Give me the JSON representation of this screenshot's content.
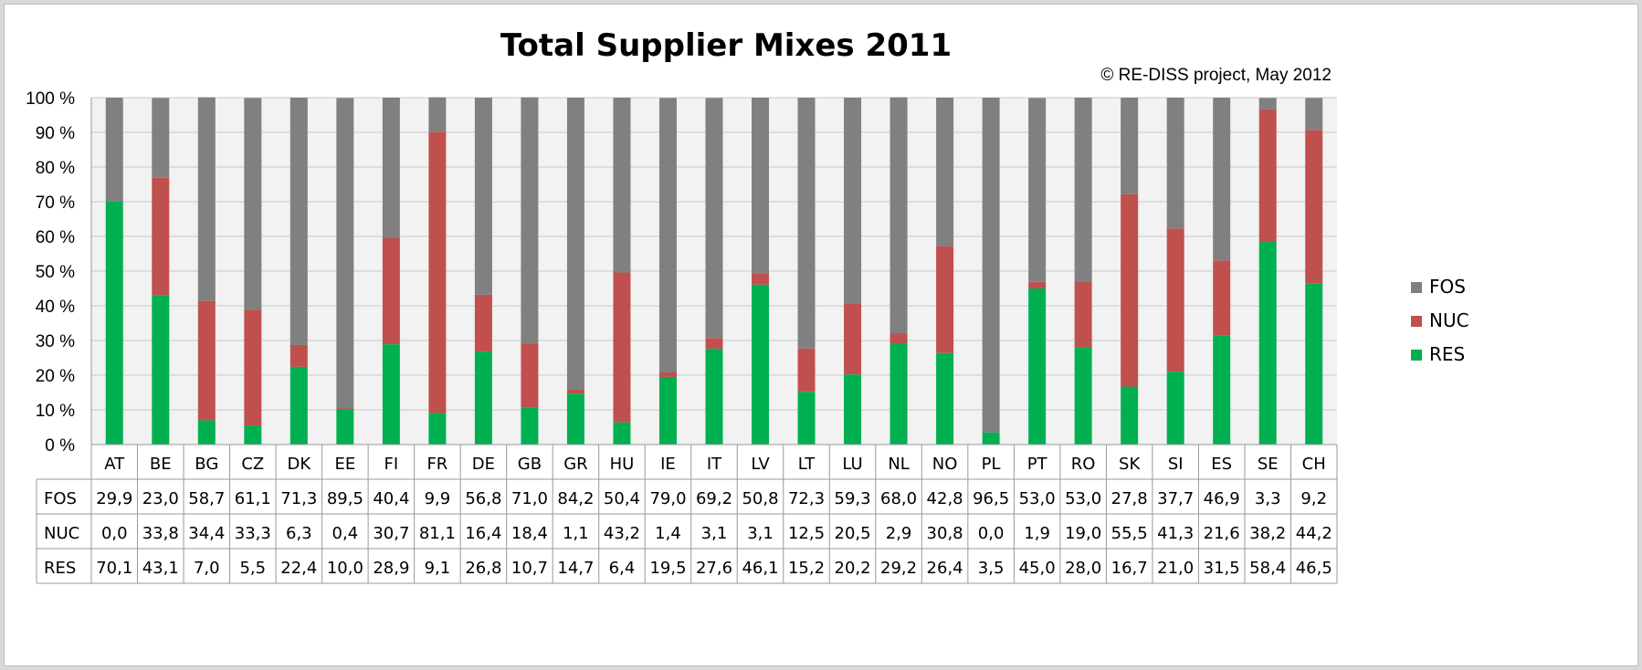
{
  "chart_data": {
    "type": "bar",
    "stacked": true,
    "percent_stacked": true,
    "title": "Total Supplier Mixes 2011",
    "annotation": "© RE-DISS project, May 2012",
    "categories": [
      "AT",
      "BE",
      "BG",
      "CZ",
      "DK",
      "EE",
      "FI",
      "FR",
      "DE",
      "GB",
      "GR",
      "HU",
      "IE",
      "IT",
      "LV",
      "LT",
      "LU",
      "NL",
      "NO",
      "PL",
      "PT",
      "RO",
      "SK",
      "SI",
      "ES",
      "SE",
      "CH"
    ],
    "series": [
      {
        "name": "RES",
        "color": "#00b050",
        "values": [
          70.1,
          43.1,
          7.0,
          5.5,
          22.4,
          10.0,
          28.9,
          9.1,
          26.8,
          10.7,
          14.7,
          6.4,
          19.5,
          27.6,
          46.1,
          15.2,
          20.2,
          29.2,
          26.4,
          3.5,
          45.0,
          28.0,
          16.7,
          21.0,
          31.5,
          58.4,
          46.5
        ],
        "labels": [
          "70,1",
          "43,1",
          "7,0",
          "5,5",
          "22,4",
          "10,0",
          "28,9",
          "9,1",
          "26,8",
          "10,7",
          "14,7",
          "6,4",
          "19,5",
          "27,6",
          "46,1",
          "15,2",
          "20,2",
          "29,2",
          "26,4",
          "3,5",
          "45,0",
          "28,0",
          "16,7",
          "21,0",
          "31,5",
          "58,4",
          "46,5"
        ]
      },
      {
        "name": "NUC",
        "color": "#c0504d",
        "values": [
          0.0,
          33.8,
          34.4,
          33.3,
          6.3,
          0.4,
          30.7,
          81.1,
          16.4,
          18.4,
          1.1,
          43.2,
          1.4,
          3.1,
          3.1,
          12.5,
          20.5,
          2.9,
          30.8,
          0.0,
          1.9,
          19.0,
          55.5,
          41.3,
          21.6,
          38.2,
          44.2
        ],
        "labels": [
          "0,0",
          "33,8",
          "34,4",
          "33,3",
          "6,3",
          "0,4",
          "30,7",
          "81,1",
          "16,4",
          "18,4",
          "1,1",
          "43,2",
          "1,4",
          "3,1",
          "3,1",
          "12,5",
          "20,5",
          "2,9",
          "30,8",
          "0,0",
          "1,9",
          "19,0",
          "55,5",
          "41,3",
          "21,6",
          "38,2",
          "44,2"
        ]
      },
      {
        "name": "FOS",
        "color": "#808080",
        "values": [
          29.9,
          23.0,
          58.7,
          61.1,
          71.3,
          89.5,
          40.4,
          9.9,
          56.8,
          71.0,
          84.2,
          50.4,
          79.0,
          69.2,
          50.8,
          72.3,
          59.3,
          68.0,
          42.8,
          96.5,
          53.0,
          53.0,
          27.8,
          37.7,
          46.9,
          3.3,
          9.2
        ],
        "labels": [
          "29,9",
          "23,0",
          "58,7",
          "61,1",
          "71,3",
          "89,5",
          "40,4",
          "9,9",
          "56,8",
          "71,0",
          "84,2",
          "50,4",
          "79,0",
          "69,2",
          "50,8",
          "72,3",
          "59,3",
          "68,0",
          "42,8",
          "96,5",
          "53,0",
          "53,0",
          "27,8",
          "37,7",
          "46,9",
          "3,3",
          "9,2"
        ]
      }
    ],
    "table_row_order": [
      "FOS",
      "NUC",
      "RES"
    ],
    "legend_order": [
      "FOS",
      "NUC",
      "RES"
    ],
    "legend_position": "right",
    "y_ticks": [
      "0 %",
      "10 %",
      "20 %",
      "30 %",
      "40 %",
      "50 %",
      "60 %",
      "70 %",
      "80 %",
      "90 %",
      "100 %"
    ],
    "ylim": [
      0,
      100
    ],
    "grid": true,
    "data_table": true
  }
}
